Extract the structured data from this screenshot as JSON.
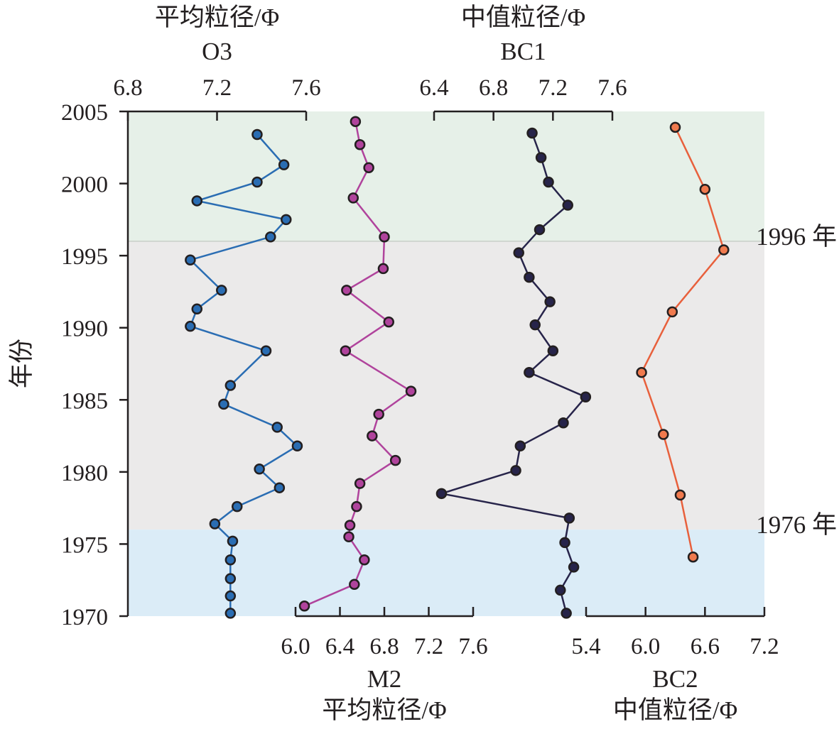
{
  "chart_data": {
    "type": "line",
    "y_axis": {
      "label": "年份",
      "range": [
        1970,
        2005
      ],
      "ticks": [
        "1970",
        "1975",
        "1980",
        "1985",
        "1990",
        "1995",
        "2000",
        "2005"
      ]
    },
    "periods": [
      {
        "label": "1996 年",
        "from": 1996,
        "to": 2005,
        "color": "#e6f0e8"
      },
      {
        "label": "",
        "from": 1976,
        "to": 1996,
        "color": "#ebeaea"
      },
      {
        "label": "1976 年",
        "from": 1970,
        "to": 1976,
        "color": "#dbecf7"
      }
    ],
    "series": [
      {
        "name": "O3",
        "title": "平均粒径/Φ",
        "axis": "top",
        "xlim": [
          6.8,
          7.6
        ],
        "ticks": [
          "6.8",
          "7.2",
          "7.6"
        ],
        "color": "#2a6db3",
        "fill": "#2a6db3",
        "x": [
          7.38,
          7.5,
          7.38,
          7.11,
          7.51,
          7.44,
          7.08,
          7.22,
          7.11,
          7.08,
          7.42,
          7.26,
          7.23,
          7.47,
          7.56,
          7.39,
          7.48,
          7.29,
          7.19,
          7.27,
          7.26,
          7.26,
          7.26,
          7.26
        ],
        "y": [
          2003.4,
          2001.3,
          2000.1,
          1998.8,
          1997.5,
          1996.3,
          1994.7,
          1992.6,
          1991.3,
          1990.1,
          1988.4,
          1986.0,
          1984.7,
          1983.1,
          1981.8,
          1980.2,
          1978.9,
          1977.6,
          1976.4,
          1975.2,
          1973.9,
          1972.6,
          1971.4,
          1970.2
        ]
      },
      {
        "name": "M2",
        "title": "平均粒径/Φ",
        "axis": "bottom",
        "xlim": [
          6.0,
          7.6
        ],
        "ticks": [
          "6.0",
          "6.4",
          "6.8",
          "7.2",
          "7.6"
        ],
        "color": "#b0439c",
        "fill": "#b0439c",
        "x": [
          6.54,
          6.58,
          6.66,
          6.52,
          6.8,
          6.79,
          6.46,
          6.84,
          6.45,
          7.04,
          6.75,
          6.69,
          6.9,
          6.58,
          6.55,
          6.49,
          6.48,
          6.62,
          6.53,
          6.08
        ],
        "y": [
          2004.3,
          2002.7,
          2001.1,
          1999.0,
          1996.3,
          1994.1,
          1992.6,
          1990.4,
          1988.4,
          1985.6,
          1984.0,
          1982.5,
          1980.8,
          1979.2,
          1977.6,
          1976.3,
          1975.5,
          1973.9,
          1972.2,
          1970.7
        ]
      },
      {
        "name": "BC1",
        "title": "中值粒径/Φ",
        "axis": "top",
        "xlim": [
          6.4,
          7.6
        ],
        "ticks": [
          "6.4",
          "6.8",
          "7.2",
          "7.6"
        ],
        "color": "#27244a",
        "fill": "#27244a",
        "x": [
          7.06,
          7.12,
          7.17,
          7.3,
          7.11,
          6.97,
          7.04,
          7.18,
          7.08,
          7.2,
          7.04,
          7.42,
          7.27,
          6.98,
          6.95,
          6.45,
          7.31,
          7.28,
          7.34,
          7.25,
          7.29
        ],
        "y": [
          2003.5,
          2001.8,
          2000.1,
          1998.5,
          1996.8,
          1995.2,
          1993.5,
          1991.8,
          1990.2,
          1988.4,
          1986.9,
          1985.2,
          1983.4,
          1981.8,
          1980.1,
          1978.5,
          1976.8,
          1975.1,
          1973.4,
          1971.8,
          1970.2
        ]
      },
      {
        "name": "BC2",
        "title": "中值粒径/Φ",
        "axis": "bottom",
        "xlim": [
          5.4,
          7.2
        ],
        "ticks": [
          "5.4",
          "6.0",
          "6.6",
          "7.2"
        ],
        "color": "#e8603c",
        "fill": "#f07a4e",
        "x": [
          6.3,
          6.6,
          6.79,
          6.27,
          5.96,
          6.18,
          6.35,
          6.48
        ],
        "y": [
          2003.9,
          1999.6,
          1995.4,
          1991.1,
          1986.9,
          1982.6,
          1978.4,
          1974.1
        ]
      }
    ]
  }
}
